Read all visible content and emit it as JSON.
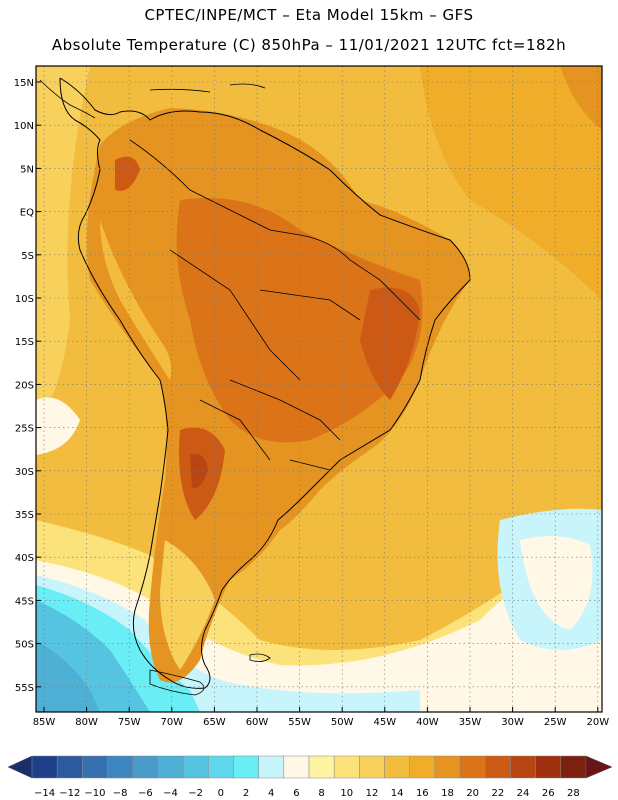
{
  "header": {
    "line1": "CPTEC/INPE/MCT –  Eta Model 15km – GFS",
    "line2": "Absolute Temperature (C) 850hPa – 11/01/2021 12UTC fct=182h"
  },
  "map": {
    "lat_labels": [
      "15N",
      "10N",
      "5N",
      "EQ",
      "5S",
      "10S",
      "15S",
      "20S",
      "25S",
      "30S",
      "35S",
      "40S",
      "45S",
      "50S",
      "55S"
    ],
    "lon_labels": [
      "85W",
      "80W",
      "75W",
      "70W",
      "65W",
      "60W",
      "55W",
      "50W",
      "45W",
      "40W",
      "35W",
      "30W",
      "25W",
      "20W"
    ]
  },
  "legend": {
    "labels": [
      "-14",
      "-12",
      "-10",
      "-8",
      "-6",
      "-4",
      "-2",
      "0",
      "2",
      "4",
      "6",
      "8",
      "10",
      "12",
      "14",
      "16",
      "18",
      "20",
      "22",
      "24",
      "26",
      "28"
    ],
    "colors": [
      "#1f3f8c",
      "#2c5aa0",
      "#3570b0",
      "#3d86c0",
      "#4a9acb",
      "#4fb0d6",
      "#55c4e0",
      "#5fd8ec",
      "#6aeef6",
      "#c8f4fb",
      "#fff8e6",
      "#fdf3a0",
      "#fce27a",
      "#f8d05c",
      "#f2bd3f",
      "#efad2a",
      "#e59422",
      "#db7418",
      "#cc5a14",
      "#b84612",
      "#9e3010",
      "#7c2010"
    ],
    "arrow_low": "#1a2e6a",
    "arrow_high": "#6a1418"
  }
}
